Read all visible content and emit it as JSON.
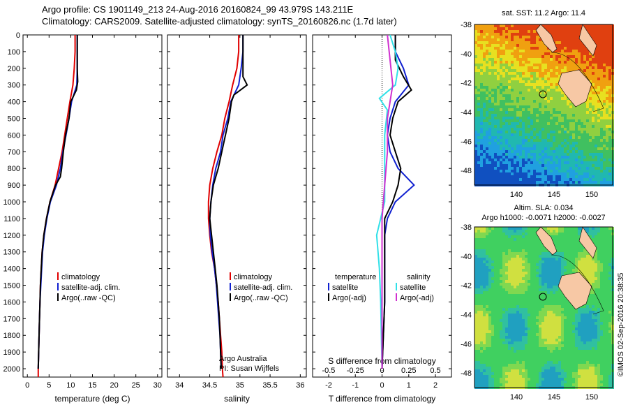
{
  "header": {
    "line1": "Argo profile: CS 1901149_213 24-Aug-2016 20160824_99 43.979S 143.211E",
    "line2": "Climatology: CARS2009. Satellite-adjusted climatology: synTS_20160826.nc (1.7d later)"
  },
  "colors": {
    "climatology": "#e00000",
    "satellite_adj": "#1020d0",
    "argo": "#000000",
    "sat_s": "#30e0e8",
    "argo_s": "#d030d0",
    "land": "#f7c8a5"
  },
  "chart_data": [
    {
      "type": "line",
      "xlabel": "temperature (deg C)",
      "ylabel": "",
      "xlim": [
        -1,
        31
      ],
      "ylim": [
        2050,
        0
      ],
      "xticks": [
        0,
        5,
        10,
        15,
        20,
        25,
        30
      ],
      "yticks": [
        0,
        100,
        200,
        300,
        400,
        500,
        600,
        700,
        800,
        900,
        1000,
        1100,
        1200,
        1300,
        1400,
        1500,
        1600,
        1700,
        1800,
        1900,
        2000
      ],
      "legend": [
        "climatology",
        "satellite-adj. clim.",
        "Argo(..raw -QC)"
      ],
      "series": [
        {
          "name": "climatology",
          "color": "climatology",
          "points": [
            [
              11.0,
              0
            ],
            [
              11.0,
              100
            ],
            [
              10.8,
              200
            ],
            [
              10.5,
              300
            ],
            [
              9.8,
              400
            ],
            [
              9.2,
              500
            ],
            [
              8.6,
              600
            ],
            [
              8.0,
              700
            ],
            [
              7.2,
              800
            ],
            [
              6.4,
              900
            ],
            [
              5.2,
              1000
            ],
            [
              4.4,
              1100
            ],
            [
              3.8,
              1200
            ],
            [
              3.4,
              1300
            ],
            [
              3.2,
              1400
            ],
            [
              3.0,
              1500
            ],
            [
              2.9,
              1600
            ],
            [
              2.8,
              1700
            ],
            [
              2.7,
              1800
            ],
            [
              2.6,
              1900
            ],
            [
              2.5,
              2000
            ],
            [
              2.5,
              2050
            ]
          ]
        },
        {
          "name": "satellite-adj. clim.",
          "color": "satellite_adj",
          "points": [
            [
              11.5,
              0
            ],
            [
              11.5,
              100
            ],
            [
              11.5,
              200
            ],
            [
              11.4,
              300
            ],
            [
              10.2,
              400
            ],
            [
              9.6,
              500
            ],
            [
              8.9,
              600
            ],
            [
              8.2,
              700
            ],
            [
              7.6,
              800
            ],
            [
              6.7,
              900
            ],
            [
              5.3,
              1000
            ],
            [
              4.5,
              1100
            ],
            [
              3.9,
              1200
            ],
            [
              3.5,
              1300
            ],
            [
              3.3,
              1400
            ],
            [
              3.1,
              1500
            ],
            [
              2.9,
              1600
            ],
            [
              2.8,
              1700
            ],
            [
              2.7,
              1800
            ],
            [
              2.6,
              1900
            ],
            [
              2.5,
              2000
            ]
          ]
        },
        {
          "name": "Argo(..raw -QC)",
          "color": "argo",
          "points": [
            [
              11.5,
              0
            ],
            [
              11.5,
              100
            ],
            [
              11.5,
              200
            ],
            [
              11.6,
              280
            ],
            [
              11.3,
              330
            ],
            [
              10.0,
              400
            ],
            [
              9.6,
              500
            ],
            [
              8.8,
              600
            ],
            [
              8.3,
              700
            ],
            [
              7.9,
              800
            ],
            [
              7.6,
              850
            ],
            [
              6.5,
              900
            ],
            [
              5.2,
              1000
            ],
            [
              4.4,
              1100
            ],
            [
              3.8,
              1200
            ],
            [
              3.4,
              1300
            ],
            [
              3.2,
              1400
            ],
            [
              3.0,
              1500
            ],
            [
              2.9,
              1600
            ],
            [
              2.8,
              1700
            ],
            [
              2.7,
              1800
            ],
            [
              2.6,
              1900
            ],
            [
              2.5,
              2000
            ]
          ]
        }
      ]
    },
    {
      "type": "line",
      "xlabel": "salinity",
      "xlim": [
        33.8,
        36.1
      ],
      "ylim": [
        2050,
        0
      ],
      "xticks": [
        34,
        34.5,
        35,
        35.5,
        36
      ],
      "xtick_labels": [
        "34",
        "34.5",
        "35",
        "35.5",
        "36"
      ],
      "legend": [
        "climatology",
        "satellite-adj. clim.",
        "Argo(..raw -QC)"
      ],
      "notes": [
        "Argo Australia",
        "PI: Susan Wijffels"
      ],
      "series": [
        {
          "name": "climatology",
          "color": "climatology",
          "points": [
            [
              34.98,
              0
            ],
            [
              34.98,
              100
            ],
            [
              34.95,
              200
            ],
            [
              34.88,
              300
            ],
            [
              34.82,
              400
            ],
            [
              34.75,
              500
            ],
            [
              34.7,
              600
            ],
            [
              34.62,
              700
            ],
            [
              34.55,
              800
            ],
            [
              34.5,
              900
            ],
            [
              34.48,
              1000
            ],
            [
              34.48,
              1100
            ],
            [
              34.5,
              1200
            ],
            [
              34.53,
              1300
            ],
            [
              34.58,
              1400
            ],
            [
              34.61,
              1500
            ],
            [
              34.64,
              1600
            ],
            [
              34.66,
              1700
            ],
            [
              34.68,
              1800
            ],
            [
              34.7,
              1900
            ],
            [
              34.71,
              2000
            ],
            [
              34.72,
              2050
            ]
          ]
        },
        {
          "name": "satellite-adj. clim.",
          "color": "satellite_adj",
          "points": [
            [
              35.05,
              0
            ],
            [
              35.05,
              100
            ],
            [
              35.02,
              200
            ],
            [
              34.98,
              300
            ],
            [
              34.85,
              400
            ],
            [
              34.8,
              500
            ],
            [
              34.72,
              600
            ],
            [
              34.68,
              700
            ],
            [
              34.6,
              800
            ],
            [
              34.55,
              900
            ],
            [
              34.52,
              1000
            ],
            [
              34.5,
              1100
            ],
            [
              34.51,
              1200
            ],
            [
              34.54,
              1300
            ],
            [
              34.58,
              1400
            ],
            [
              34.61,
              1500
            ],
            [
              34.63,
              1600
            ],
            [
              34.65,
              1700
            ],
            [
              34.67,
              1800
            ],
            [
              34.68,
              1900
            ],
            [
              34.69,
              2000
            ]
          ]
        },
        {
          "name": "Argo(..raw -QC)",
          "color": "argo",
          "points": [
            [
              35.05,
              0
            ],
            [
              35.05,
              100
            ],
            [
              35.05,
              250
            ],
            [
              35.12,
              300
            ],
            [
              34.9,
              360
            ],
            [
              34.86,
              400
            ],
            [
              34.82,
              500
            ],
            [
              34.76,
              600
            ],
            [
              34.7,
              700
            ],
            [
              34.64,
              800
            ],
            [
              34.56,
              900
            ],
            [
              34.52,
              1000
            ],
            [
              34.5,
              1100
            ],
            [
              34.53,
              1200
            ],
            [
              34.56,
              1300
            ],
            [
              34.59,
              1400
            ],
            [
              34.62,
              1500
            ],
            [
              34.64,
              1600
            ],
            [
              34.66,
              1700
            ],
            [
              34.67,
              1800
            ],
            [
              34.68,
              1900
            ],
            [
              34.69,
              2000
            ]
          ]
        }
      ]
    },
    {
      "type": "line",
      "xlabel": "T difference from climatology",
      "xlabel2": "S difference from climatology",
      "xlim": [
        -2.6,
        2.6
      ],
      "ylim": [
        2050,
        0
      ],
      "xticks": [
        -2,
        -1,
        0,
        1,
        2
      ],
      "xticks_s": [
        "-0.5",
        "-0.25",
        "0",
        "0.25",
        "0.5"
      ],
      "legend_t_head": "temperature",
      "legend_s_head": "salinity",
      "legend_t": [
        "satellite",
        "Argo(-adj)"
      ],
      "legend_s": [
        "satellite",
        "Argo(-adj)"
      ],
      "series": [
        {
          "name": "satellite",
          "color": "satellite_adj",
          "points": [
            [
              0.5,
              0
            ],
            [
              0.5,
              100
            ],
            [
              0.8,
              200
            ],
            [
              1.0,
              300
            ],
            [
              0.5,
              400
            ],
            [
              0.3,
              500
            ],
            [
              0.2,
              600
            ],
            [
              0.3,
              700
            ],
            [
              0.6,
              800
            ],
            [
              1.2,
              900
            ],
            [
              0.5,
              1000
            ],
            [
              0.2,
              1100
            ],
            [
              0.1,
              1200
            ],
            [
              0.1,
              1400
            ],
            [
              0.1,
              1600
            ],
            [
              0.0,
              2000
            ]
          ]
        },
        {
          "name": "Argo(-adj)",
          "color": "argo",
          "points": [
            [
              0.5,
              0
            ],
            [
              0.5,
              150
            ],
            [
              0.8,
              250
            ],
            [
              1.1,
              330
            ],
            [
              0.6,
              400
            ],
            [
              0.4,
              500
            ],
            [
              0.3,
              600
            ],
            [
              0.5,
              700
            ],
            [
              0.7,
              800
            ],
            [
              0.6,
              900
            ],
            [
              0.4,
              1000
            ],
            [
              0.1,
              1100
            ],
            [
              0.1,
              1300
            ],
            [
              0.1,
              1600
            ],
            [
              0.0,
              2000
            ]
          ]
        },
        {
          "name": "satellite",
          "color": "sat_s",
          "points": [
            [
              0.3,
              0
            ],
            [
              0.5,
              100
            ],
            [
              0.6,
              200
            ],
            [
              0.5,
              300
            ],
            [
              -0.1,
              380
            ],
            [
              0.2,
              450
            ],
            [
              0.1,
              600
            ],
            [
              0.1,
              800
            ],
            [
              0.1,
              1000
            ],
            [
              -0.2,
              1200
            ],
            [
              -0.1,
              1400
            ],
            [
              -0.05,
              1600
            ],
            [
              0.0,
              2000
            ]
          ]
        },
        {
          "name": "Argo(-adj)",
          "color": "argo_s",
          "points": [
            [
              0.2,
              0
            ],
            [
              0.3,
              150
            ],
            [
              0.4,
              300
            ],
            [
              0.3,
              400
            ],
            [
              0.2,
              500
            ],
            [
              0.2,
              700
            ],
            [
              0.1,
              900
            ],
            [
              0.0,
              1100
            ],
            [
              0.0,
              1500
            ],
            [
              0.0,
              2000
            ]
          ]
        }
      ]
    }
  ],
  "maps": {
    "top_title": "sat. SST: 11.2  Argo: 11.4",
    "bottom_title1": "Altim. SLA: 0.034",
    "bottom_title2": "Argo h1000: -0.0071 h2000: -0.0027",
    "xticks": [
      "140",
      "145",
      "150"
    ],
    "yticks": [
      "-38",
      "-40",
      "-42",
      "-44",
      "-46",
      "-48"
    ],
    "credit": "©IMOS 02-Sep-2016 20:38:35"
  }
}
